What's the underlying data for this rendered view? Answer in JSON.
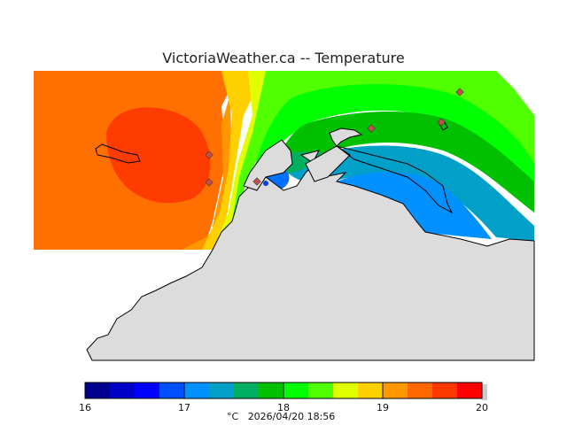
{
  "header": {
    "title": "VictoriaWeather.ca  --  Temperature"
  },
  "legend": {
    "unit": "°C",
    "timestamp": "2026/04/20 18:56",
    "min": 16,
    "max": 20,
    "tick_labels": [
      "16",
      "17",
      "18",
      "19",
      "20"
    ],
    "colors": [
      "#000090",
      "#0000c8",
      "#0000ff",
      "#0050ff",
      "#0090ff",
      "#00a0c8",
      "#00b060",
      "#00c000",
      "#00ff00",
      "#50ff00",
      "#e0ff00",
      "#ffd000",
      "#ff9800",
      "#ff6800",
      "#ff3800",
      "#ff0000"
    ]
  },
  "map": {
    "land_color": "#dcdcdc",
    "station_color": "#c05050"
  }
}
